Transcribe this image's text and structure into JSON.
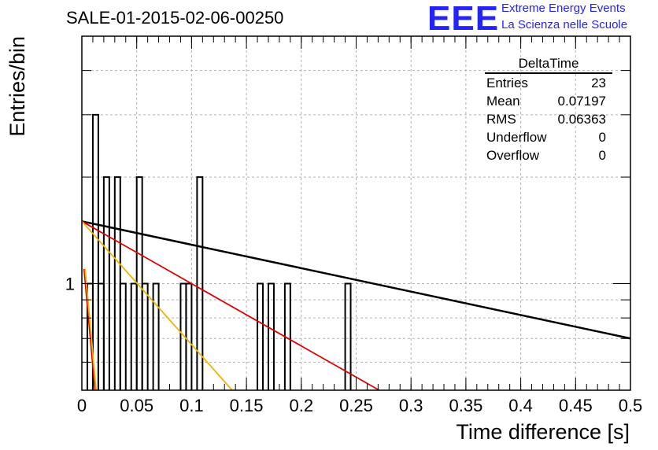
{
  "header": {
    "run_title": "SALE-01-2015-02-06-00250",
    "logo_text": "EEE",
    "logo_line1": "Extreme Energy Events",
    "logo_line2": "La Scienza nelle Scuole",
    "brand_color": "#2323ff"
  },
  "stats_box": {
    "title": "DeltaTime",
    "rows": [
      {
        "label": "Entries",
        "value": "23"
      },
      {
        "label": "Mean",
        "value": "0.07197"
      },
      {
        "label": "RMS",
        "value": "0.06363"
      },
      {
        "label": "Underflow",
        "value": "0"
      },
      {
        "label": "Overflow",
        "value": "0"
      }
    ]
  },
  "chart_data": {
    "type": "bar",
    "title": "SALE-01-2015-02-06-00250",
    "xlabel": "Time difference [s]",
    "ylabel": "Entries/bin",
    "xlim": [
      0,
      0.5
    ],
    "ylim": [
      0.5,
      5
    ],
    "y_scale": "log",
    "grid": true,
    "bin_width": 0.005,
    "x_ticks": [
      "0",
      "0.05",
      "0.1",
      "0.15",
      "0.2",
      "0.25",
      "0.3",
      "0.35",
      "0.4",
      "0.45",
      "0.5"
    ],
    "y_tick_labels": [
      "1"
    ],
    "bins": [
      {
        "x": 0.005,
        "value": 1
      },
      {
        "x": 0.01,
        "value": 3
      },
      {
        "x": 0.015,
        "value": 1
      },
      {
        "x": 0.02,
        "value": 2
      },
      {
        "x": 0.03,
        "value": 2
      },
      {
        "x": 0.035,
        "value": 1
      },
      {
        "x": 0.045,
        "value": 1
      },
      {
        "x": 0.05,
        "value": 2
      },
      {
        "x": 0.055,
        "value": 1
      },
      {
        "x": 0.065,
        "value": 1
      },
      {
        "x": 0.09,
        "value": 1
      },
      {
        "x": 0.095,
        "value": 1
      },
      {
        "x": 0.105,
        "value": 2
      },
      {
        "x": 0.16,
        "value": 1
      },
      {
        "x": 0.17,
        "value": 1
      },
      {
        "x": 0.185,
        "value": 1
      },
      {
        "x": 0.24,
        "value": 1
      }
    ],
    "fit_lines": [
      {
        "color": "#000000",
        "points": [
          [
            0,
            1.5
          ],
          [
            0.5,
            0.7
          ]
        ]
      },
      {
        "color": "#e00000",
        "points": [
          [
            0,
            1.5
          ],
          [
            0.271,
            0.5
          ]
        ]
      },
      {
        "color": "#f0b400",
        "points": [
          [
            0,
            1.5
          ],
          [
            0.137,
            0.5
          ]
        ]
      },
      {
        "color": "#e00000",
        "points": [
          [
            0.002,
            1.1
          ],
          [
            0.012,
            0.5
          ]
        ]
      },
      {
        "color": "#f0b400",
        "points": [
          [
            0.003,
            1.1
          ],
          [
            0.013,
            0.5
          ]
        ]
      }
    ]
  }
}
